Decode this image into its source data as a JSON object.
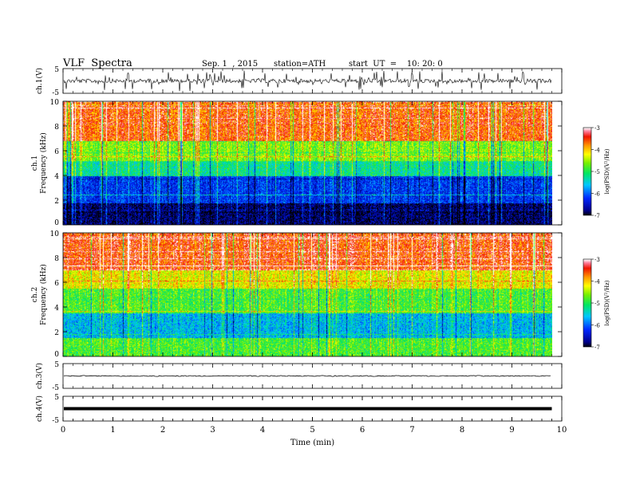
{
  "header": {
    "title": "VLF  Spectra",
    "date": "Sep. 1  , 2015",
    "station": "station=ATH",
    "start": "start  UT  =    10: 20: 0"
  },
  "chart_data": [
    {
      "type": "line",
      "ylabel": "ch.1(V)",
      "ylim": [
        -5,
        5
      ],
      "y_ticks": [
        "5",
        "-5"
      ],
      "trace": "noisy waveform with dense spikes around 0 V"
    },
    {
      "type": "heatmap",
      "ylabel_channel": "ch.1",
      "ylabel": "Frequency  (kHz)",
      "ylim": [
        0,
        10
      ],
      "y_ticks": [
        "0",
        "2",
        "4",
        "6",
        "8",
        "10"
      ],
      "colorbar": {
        "label": "log(PSD)(V²/Hz)",
        "range": [
          -7,
          -3
        ],
        "ticks": [
          "-3",
          "-4",
          "-5",
          "-6",
          "-7"
        ]
      },
      "bands": [
        {
          "from": 0,
          "to": 1.8,
          "level": -6.8
        },
        {
          "from": 1.8,
          "to": 4.0,
          "level": -6.2
        },
        {
          "from": 4.0,
          "to": 5.2,
          "level": -5.2
        },
        {
          "from": 5.2,
          "to": 6.8,
          "level": -4.6
        },
        {
          "from": 6.8,
          "to": 10,
          "level": -3.6
        }
      ]
    },
    {
      "type": "heatmap",
      "ylabel_channel": "ch.2",
      "ylabel": "Frequency  (kHz)",
      "ylim": [
        0,
        10
      ],
      "y_ticks": [
        "0",
        "2",
        "4",
        "6",
        "8",
        "10"
      ],
      "colorbar": {
        "label": "log(PSD)(V²/Hz)",
        "range": [
          -7,
          -3
        ],
        "ticks": [
          "-3",
          "-4",
          "-5",
          "-6",
          "-7"
        ]
      },
      "bands": [
        {
          "from": 0,
          "to": 1.5,
          "level": -4.8
        },
        {
          "from": 1.5,
          "to": 3.5,
          "level": -5.6
        },
        {
          "from": 3.5,
          "to": 5.5,
          "level": -4.8
        },
        {
          "from": 5.5,
          "to": 7.0,
          "level": -4.2
        },
        {
          "from": 7.0,
          "to": 10,
          "level": -3.5
        }
      ]
    },
    {
      "type": "line",
      "ylabel": "ch.3(V)",
      "ylim": [
        -5,
        5
      ],
      "y_ticks": [
        "5",
        "-5"
      ],
      "trace": "near-flat line at about 0 V"
    },
    {
      "type": "line",
      "ylabel": "ch.4(V)",
      "ylim": [
        -5,
        5
      ],
      "y_ticks": [
        "5",
        "-5"
      ],
      "trace": "thick flat line at about 0 V"
    }
  ],
  "x_axis": {
    "label": "Time  (min)",
    "range": [
      0,
      10
    ],
    "data_end": 9.8,
    "ticks": [
      "0",
      "1",
      "2",
      "3",
      "4",
      "5",
      "6",
      "7",
      "8",
      "9",
      "10"
    ]
  }
}
